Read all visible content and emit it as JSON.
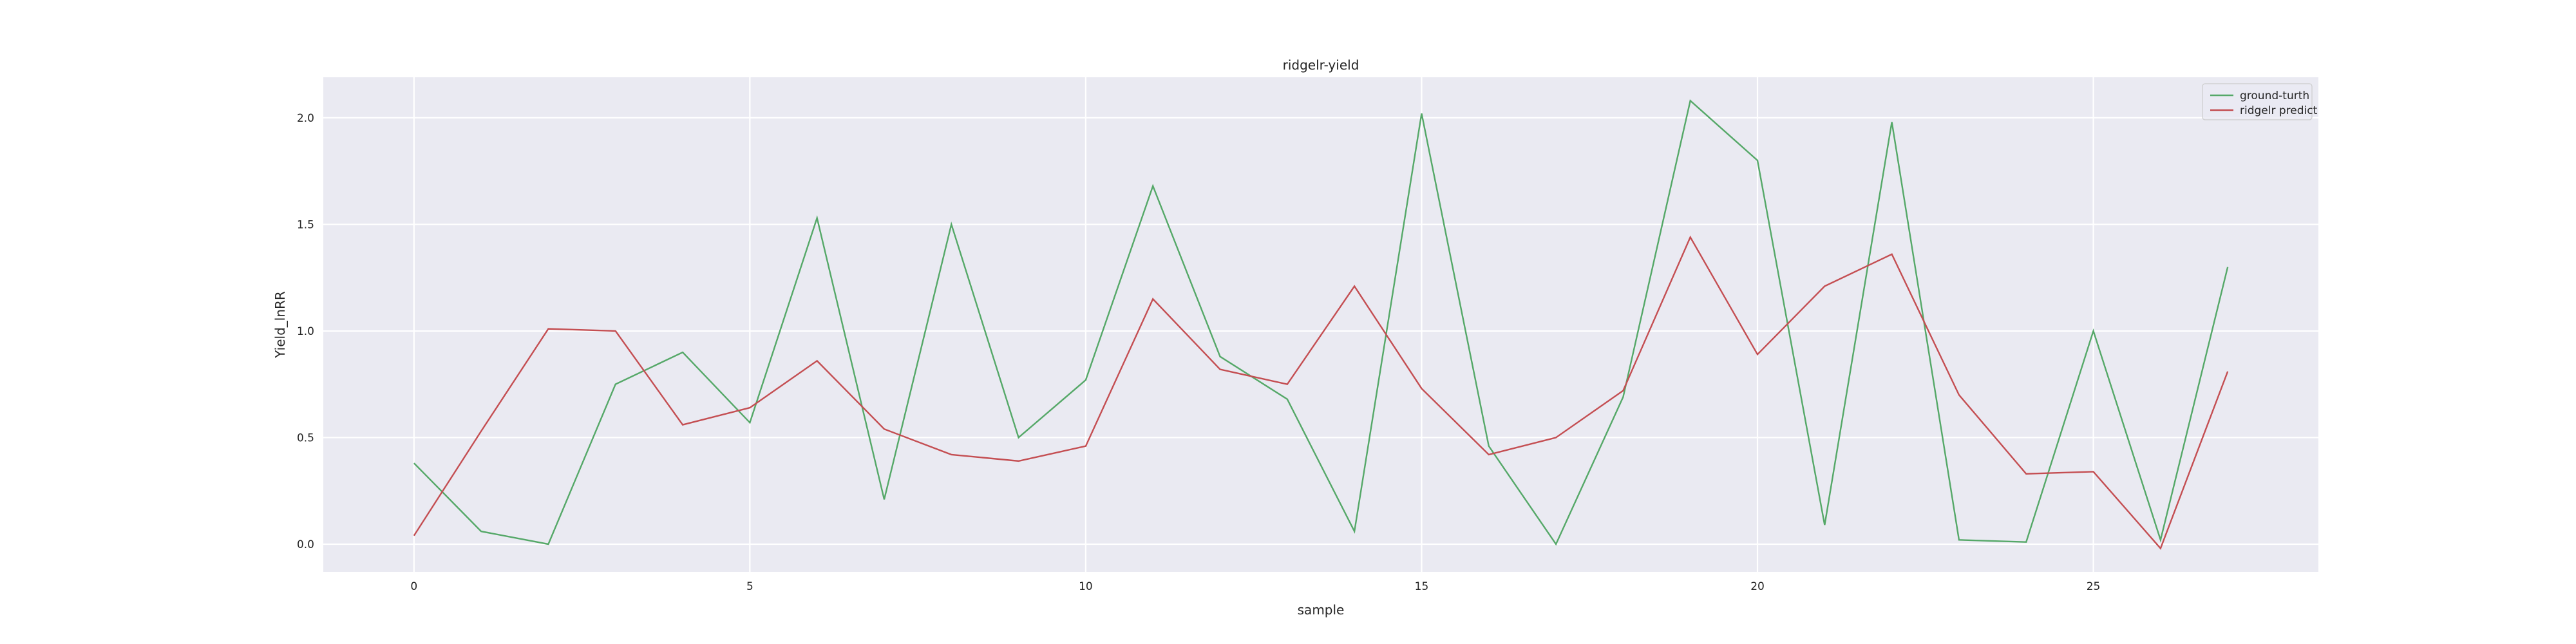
{
  "chart_data": {
    "type": "line",
    "title": "ridgelr-yield",
    "xlabel": "sample",
    "ylabel": "Yield_lnRR",
    "xlim": [
      -1.35,
      28.35
    ],
    "ylim": [
      -0.13,
      2.19
    ],
    "xticks": [
      0,
      5,
      10,
      15,
      20,
      25
    ],
    "yticks": [
      0.0,
      0.5,
      1.0,
      1.5,
      2.0
    ],
    "ytick_labels": [
      "0.0",
      "0.5",
      "1.0",
      "1.5",
      "2.0"
    ],
    "grid": true,
    "legend_position": "top-right",
    "x": [
      0,
      1,
      2,
      3,
      4,
      5,
      6,
      7,
      8,
      9,
      10,
      11,
      12,
      13,
      14,
      15,
      16,
      17,
      18,
      19,
      20,
      21,
      22,
      23,
      24,
      25,
      26,
      27
    ],
    "series": [
      {
        "name": "ground-turth",
        "color": "#55a868",
        "values": [
          0.38,
          0.06,
          0.0,
          0.75,
          0.9,
          0.57,
          1.53,
          0.21,
          1.5,
          0.5,
          0.77,
          1.68,
          0.88,
          0.68,
          0.06,
          2.02,
          0.46,
          0.0,
          0.69,
          2.08,
          1.8,
          0.09,
          1.98,
          0.02,
          0.01,
          1.0,
          0.02,
          1.3
        ]
      },
      {
        "name": "ridgelr predict",
        "color": "#c44e52",
        "values": [
          0.04,
          0.53,
          1.01,
          1.0,
          0.56,
          0.64,
          0.86,
          0.54,
          0.42,
          0.39,
          0.46,
          1.15,
          0.82,
          0.75,
          1.21,
          0.73,
          0.42,
          0.5,
          0.72,
          1.44,
          0.89,
          1.21,
          1.36,
          0.7,
          0.33,
          0.34,
          -0.02,
          0.81
        ]
      }
    ]
  }
}
